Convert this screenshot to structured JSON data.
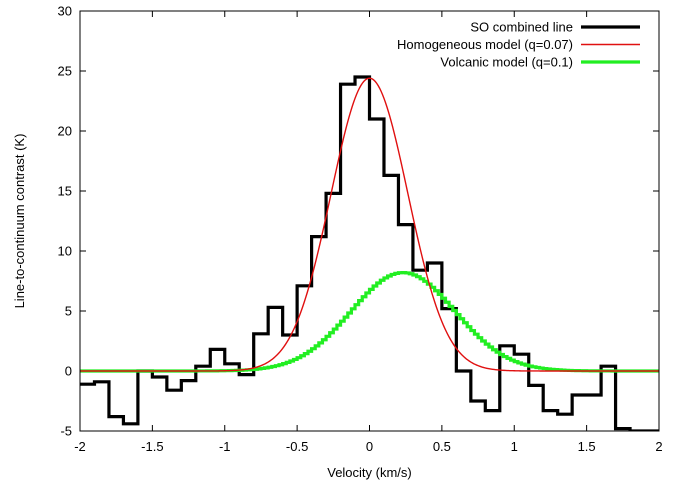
{
  "chart_data": {
    "type": "line",
    "title": "",
    "xlabel": "Velocity (km/s)",
    "ylabel": "Line-to-continuum contrast (K)",
    "xlim": [
      -2,
      2
    ],
    "ylim": [
      -5,
      30
    ],
    "xticks": [
      -2,
      -1.5,
      -1,
      -0.5,
      0,
      0.5,
      1,
      1.5,
      2
    ],
    "yticks": [
      -5,
      0,
      5,
      10,
      15,
      20,
      25,
      30
    ],
    "xtick_labels": [
      "-2",
      "-1.5",
      "-1",
      "-0.5",
      "0",
      "0.5",
      "1",
      "1.5",
      "2"
    ],
    "ytick_labels": [
      "-5",
      "0",
      "5",
      "10",
      "15",
      "20",
      "25",
      "30"
    ],
    "grid": false,
    "legend_position": "top-right",
    "series": [
      {
        "name": "SO combined line",
        "style": "steps",
        "color": "#000000",
        "x": [
          -2.0,
          -1.9,
          -1.8,
          -1.7,
          -1.6,
          -1.5,
          -1.4,
          -1.3,
          -1.2,
          -1.1,
          -1.0,
          -0.9,
          -0.8,
          -0.7,
          -0.6,
          -0.5,
          -0.4,
          -0.3,
          -0.2,
          -0.1,
          0.0,
          0.1,
          0.2,
          0.3,
          0.4,
          0.5,
          0.6,
          0.7,
          0.8,
          0.9,
          1.0,
          1.1,
          1.2,
          1.3,
          1.4,
          1.5,
          1.6,
          1.7,
          1.8,
          1.9,
          2.0
        ],
        "y": [
          -1.1,
          -0.9,
          -3.8,
          -4.4,
          0.0,
          -0.5,
          -1.6,
          -0.8,
          0.4,
          1.8,
          0.6,
          -0.3,
          3.1,
          5.3,
          3.0,
          7.1,
          11.2,
          14.8,
          23.9,
          24.5,
          21.0,
          16.3,
          12.2,
          8.4,
          9.0,
          5.2,
          0.0,
          -2.5,
          -3.3,
          2.1,
          1.4,
          -1.2,
          -3.3,
          -3.6,
          -2.0,
          -2.0,
          0.4,
          -4.8,
          -5.0,
          -5.0,
          -5.0
        ]
      },
      {
        "name": "Homogeneous model (q=0.07)",
        "style": "gaussian",
        "color": "#e01010",
        "amplitude": 24.4,
        "center": 0.0,
        "sigma": 0.265
      },
      {
        "name": "Volcanic model (q=0.1)",
        "style": "gaussian-steps",
        "color": "#22ee22",
        "amplitude": 8.2,
        "center": 0.22,
        "sigma": 0.36
      }
    ]
  }
}
